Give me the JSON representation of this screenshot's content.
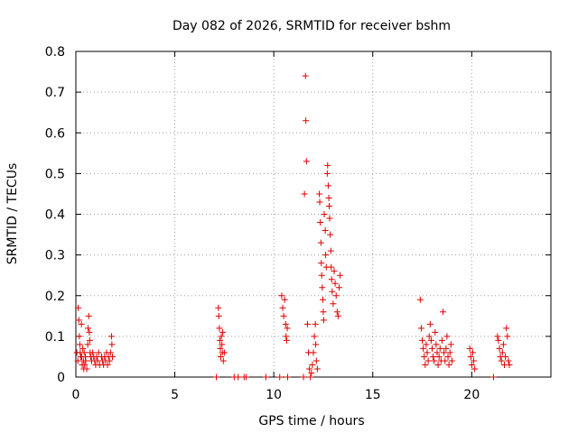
{
  "chart_data": {
    "type": "scatter",
    "title": "Day 082 of 2026, SRMTID for receiver bshm",
    "xlabel": "GPS time / hours",
    "ylabel": "SRMTID / TECUs",
    "xlim": [
      0,
      24
    ],
    "ylim": [
      0,
      0.8
    ],
    "xticks": [
      0,
      5,
      10,
      15,
      20
    ],
    "xtick_labels": [
      "0",
      "5",
      "10",
      "15",
      "20"
    ],
    "yticks": [
      0,
      0.1,
      0.2,
      0.3,
      0.4,
      0.5,
      0.6,
      0.7,
      0.8
    ],
    "ytick_labels": [
      "0",
      "0.1",
      "0.2",
      "0.3",
      "0.4",
      "0.5",
      "0.6",
      "0.7",
      "0.8"
    ],
    "grid": true,
    "marker": "+",
    "marker_color": "#e00000",
    "series": [
      {
        "name": "SRMTID",
        "points": [
          [
            0.05,
            0.06
          ],
          [
            0.1,
            0.04
          ],
          [
            0.12,
            0.17
          ],
          [
            0.15,
            0.14
          ],
          [
            0.18,
            0.1
          ],
          [
            0.2,
            0.08
          ],
          [
            0.22,
            0.06
          ],
          [
            0.25,
            0.05
          ],
          [
            0.28,
            0.13
          ],
          [
            0.3,
            0.05
          ],
          [
            0.32,
            0.03
          ],
          [
            0.35,
            0.07
          ],
          [
            0.38,
            0.04
          ],
          [
            0.4,
            0.02
          ],
          [
            0.42,
            0.06
          ],
          [
            0.45,
            0.03
          ],
          [
            0.48,
            0.05
          ],
          [
            0.5,
            0.04
          ],
          [
            0.55,
            0.02
          ],
          [
            0.6,
            0.08
          ],
          [
            0.62,
            0.12
          ],
          [
            0.65,
            0.15
          ],
          [
            0.68,
            0.11
          ],
          [
            0.7,
            0.09
          ],
          [
            0.72,
            0.06
          ],
          [
            0.75,
            0.05
          ],
          [
            0.8,
            0.04
          ],
          [
            0.85,
            0.06
          ],
          [
            0.9,
            0.05
          ],
          [
            0.95,
            0.04
          ],
          [
            1.0,
            0.03
          ],
          [
            1.05,
            0.05
          ],
          [
            1.1,
            0.04
          ],
          [
            1.15,
            0.06
          ],
          [
            1.2,
            0.03
          ],
          [
            1.3,
            0.05
          ],
          [
            1.35,
            0.04
          ],
          [
            1.4,
            0.03
          ],
          [
            1.45,
            0.05
          ],
          [
            1.5,
            0.04
          ],
          [
            1.55,
            0.06
          ],
          [
            1.6,
            0.03
          ],
          [
            1.65,
            0.05
          ],
          [
            1.7,
            0.04
          ],
          [
            1.75,
            0.06
          ],
          [
            1.8,
            0.1
          ],
          [
            1.82,
            0.08
          ],
          [
            1.85,
            0.05
          ],
          [
            7.1,
            0.0
          ],
          [
            7.2,
            0.17
          ],
          [
            7.22,
            0.15
          ],
          [
            7.25,
            0.12
          ],
          [
            7.28,
            0.09
          ],
          [
            7.3,
            0.07
          ],
          [
            7.32,
            0.05
          ],
          [
            7.35,
            0.1
          ],
          [
            7.38,
            0.08
          ],
          [
            7.4,
            0.06
          ],
          [
            7.42,
            0.11
          ],
          [
            7.45,
            0.04
          ],
          [
            7.5,
            0.06
          ],
          [
            8.0,
            0.0
          ],
          [
            8.2,
            0.0
          ],
          [
            8.5,
            0.0
          ],
          [
            8.6,
            0.0
          ],
          [
            9.6,
            0.0
          ],
          [
            10.3,
            0.0
          ],
          [
            10.4,
            0.2
          ],
          [
            10.45,
            0.17
          ],
          [
            10.5,
            0.15
          ],
          [
            10.55,
            0.19
          ],
          [
            10.6,
            0.13
          ],
          [
            10.62,
            0.1
          ],
          [
            10.65,
            0.09
          ],
          [
            10.68,
            0.12
          ],
          [
            10.7,
            0.0
          ],
          [
            11.5,
            0.0
          ],
          [
            11.55,
            0.45
          ],
          [
            11.6,
            0.74
          ],
          [
            11.62,
            0.63
          ],
          [
            11.65,
            0.53
          ],
          [
            11.7,
            0.13
          ],
          [
            11.75,
            0.06
          ],
          [
            11.8,
            0.02
          ],
          [
            11.85,
            0.0
          ],
          [
            11.9,
            0.01
          ],
          [
            11.95,
            0.03
          ],
          [
            12.0,
            0.06
          ],
          [
            12.05,
            0.1
          ],
          [
            12.1,
            0.13
          ],
          [
            12.12,
            0.08
          ],
          [
            12.15,
            0.04
          ],
          [
            12.2,
            0.02
          ],
          [
            12.3,
            0.45
          ],
          [
            12.32,
            0.43
          ],
          [
            12.35,
            0.38
          ],
          [
            12.38,
            0.33
          ],
          [
            12.4,
            0.28
          ],
          [
            12.42,
            0.25
          ],
          [
            12.45,
            0.22
          ],
          [
            12.48,
            0.19
          ],
          [
            12.5,
            0.16
          ],
          [
            12.52,
            0.14
          ],
          [
            12.55,
            0.4
          ],
          [
            12.6,
            0.36
          ],
          [
            12.62,
            0.3
          ],
          [
            12.65,
            0.27
          ],
          [
            12.7,
            0.5
          ],
          [
            12.72,
            0.52
          ],
          [
            12.75,
            0.47
          ],
          [
            12.78,
            0.44
          ],
          [
            12.8,
            0.42
          ],
          [
            12.82,
            0.39
          ],
          [
            12.85,
            0.35
          ],
          [
            12.88,
            0.31
          ],
          [
            12.9,
            0.27
          ],
          [
            12.92,
            0.24
          ],
          [
            12.95,
            0.21
          ],
          [
            13.0,
            0.18
          ],
          [
            13.05,
            0.26
          ],
          [
            13.1,
            0.23
          ],
          [
            13.15,
            0.2
          ],
          [
            13.2,
            0.16
          ],
          [
            13.25,
            0.15
          ],
          [
            13.3,
            0.22
          ],
          [
            13.35,
            0.25
          ],
          [
            17.4,
            0.19
          ],
          [
            17.45,
            0.12
          ],
          [
            17.5,
            0.09
          ],
          [
            17.55,
            0.07
          ],
          [
            17.6,
            0.05
          ],
          [
            17.65,
            0.03
          ],
          [
            17.7,
            0.08
          ],
          [
            17.75,
            0.06
          ],
          [
            17.8,
            0.04
          ],
          [
            17.85,
            0.1
          ],
          [
            17.9,
            0.13
          ],
          [
            17.95,
            0.09
          ],
          [
            18.0,
            0.07
          ],
          [
            18.05,
            0.05
          ],
          [
            18.1,
            0.04
          ],
          [
            18.15,
            0.11
          ],
          [
            18.2,
            0.08
          ],
          [
            18.25,
            0.06
          ],
          [
            18.3,
            0.03
          ],
          [
            18.35,
            0.05
          ],
          [
            18.4,
            0.07
          ],
          [
            18.45,
            0.04
          ],
          [
            18.5,
            0.09
          ],
          [
            18.55,
            0.16
          ],
          [
            18.6,
            0.06
          ],
          [
            18.65,
            0.04
          ],
          [
            18.7,
            0.07
          ],
          [
            18.75,
            0.1
          ],
          [
            18.8,
            0.05
          ],
          [
            18.85,
            0.03
          ],
          [
            18.9,
            0.06
          ],
          [
            18.95,
            0.08
          ],
          [
            19.0,
            0.04
          ],
          [
            19.9,
            0.07
          ],
          [
            19.95,
            0.05
          ],
          [
            20.0,
            0.03
          ],
          [
            20.05,
            0.06
          ],
          [
            20.1,
            0.04
          ],
          [
            20.15,
            0.02
          ],
          [
            21.1,
            0.0
          ],
          [
            21.3,
            0.1
          ],
          [
            21.35,
            0.09
          ],
          [
            21.4,
            0.07
          ],
          [
            21.45,
            0.05
          ],
          [
            21.5,
            0.04
          ],
          [
            21.55,
            0.06
          ],
          [
            21.6,
            0.08
          ],
          [
            21.65,
            0.03
          ],
          [
            21.7,
            0.05
          ],
          [
            21.75,
            0.12
          ],
          [
            21.8,
            0.1
          ],
          [
            21.85,
            0.04
          ],
          [
            21.9,
            0.03
          ]
        ]
      }
    ]
  }
}
